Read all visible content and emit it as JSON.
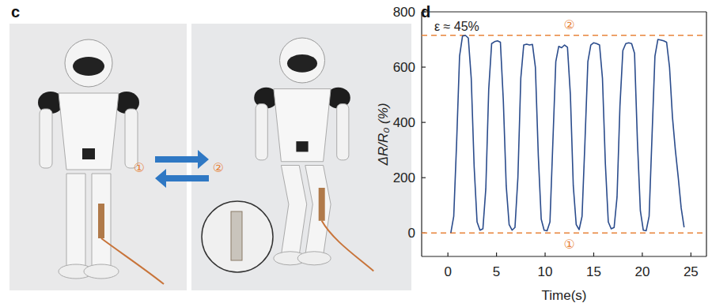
{
  "panel_labels": [
    "c",
    "d"
  ],
  "photo": {
    "state_labels": [
      "①",
      "②"
    ]
  },
  "chart_data": {
    "type": "line",
    "x_label": "Time(s)",
    "y_label": "ΔR/R₀ (%)",
    "xlim": [
      -2.7,
      26.6
    ],
    "ylim": [
      -85,
      800
    ],
    "xticks": [
      0,
      5,
      10,
      15,
      20,
      25
    ],
    "yticks": [
      0,
      200,
      400,
      600,
      800
    ],
    "grid": false,
    "annotations": [
      {
        "text": "ε ≈ 45%"
      }
    ],
    "reference_lines": [
      {
        "value": 715,
        "label": "②",
        "color": "#e8833a",
        "line_style": "dashed"
      },
      {
        "value": 0,
        "label": "①",
        "color": "#e8833a",
        "line_style": "dashed"
      }
    ],
    "series": [
      {
        "name": "ΔR/R₀",
        "color": "#2b4c8c",
        "x": [
          0.3,
          0.6,
          0.9,
          1.2,
          1.5,
          1.8,
          2.1,
          2.4,
          2.7,
          3.0,
          3.3,
          3.6,
          3.9,
          4.2,
          4.5,
          4.8,
          5.1,
          5.4,
          5.7,
          6.0,
          6.3,
          6.6,
          6.9,
          7.2,
          7.5,
          7.8,
          8.1,
          8.4,
          8.7,
          9.0,
          9.3,
          9.6,
          9.9,
          10.2,
          10.5,
          10.8,
          11.1,
          11.4,
          11.7,
          12.0,
          12.3,
          12.6,
          12.9,
          13.2,
          13.5,
          13.8,
          14.1,
          14.4,
          14.7,
          15.0,
          15.3,
          15.6,
          15.9,
          16.2,
          16.5,
          16.8,
          17.1,
          17.4,
          17.7,
          18.0,
          18.3,
          18.6,
          18.9,
          19.2,
          19.5,
          19.8,
          20.1,
          20.4,
          20.7,
          21.0,
          21.3,
          21.6,
          21.9,
          22.2,
          22.5,
          22.8,
          23.1,
          23.4,
          23.7,
          24.0,
          24.3
        ],
        "values": [
          0,
          60,
          330,
          640,
          712,
          715,
          705,
          560,
          240,
          40,
          10,
          15,
          160,
          520,
          685,
          692,
          695,
          690,
          480,
          170,
          30,
          10,
          20,
          200,
          560,
          680,
          683,
          680,
          682,
          600,
          280,
          50,
          10,
          8,
          40,
          330,
          620,
          675,
          670,
          680,
          672,
          500,
          170,
          30,
          12,
          60,
          330,
          620,
          680,
          688,
          685,
          680,
          560,
          250,
          40,
          15,
          20,
          130,
          460,
          660,
          685,
          688,
          685,
          650,
          330,
          80,
          10,
          8,
          60,
          350,
          640,
          700,
          698,
          695,
          690,
          600,
          420,
          300,
          200,
          90,
          20
        ]
      }
    ]
  }
}
